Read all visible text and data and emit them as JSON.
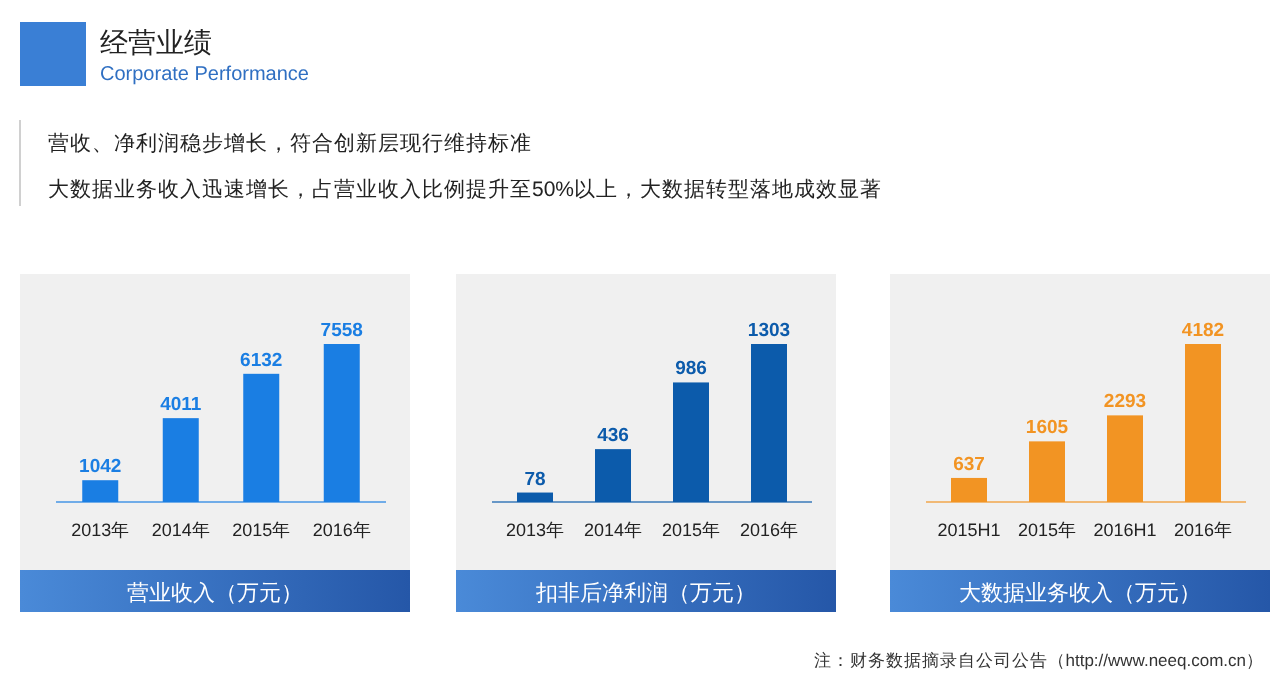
{
  "chart_data": [
    {
      "type": "bar",
      "title": "营业收入（万元）",
      "categories": [
        "2013年",
        "2014年",
        "2015年",
        "2016年"
      ],
      "values": [
        1042,
        4011,
        6132,
        7558
      ],
      "color": "#1a7ee3",
      "data_labels": true,
      "annotations": [
        "经营业绩",
        "Corporate Performance",
        "营收、净利润稳步增长，符合创新层现行维持标准",
        "大数据业务收入迅速增长，占营业收入比例提升至50%以上，大数据转型落地成效显著",
        "注：财务数据摘录自公司公告（http://www.neeq.com.cn）"
      ]
    },
    {
      "type": "bar",
      "title": "扣非后净利润（万元）",
      "categories": [
        "2013年",
        "2014年",
        "2015年",
        "2016年"
      ],
      "values": [
        78,
        436,
        986,
        1303
      ],
      "color": "#0c5bab",
      "data_labels": true
    },
    {
      "type": "bar",
      "title": "大数据业务收入（万元）",
      "categories": [
        "2015H1",
        "2015年",
        "2016H1",
        "2016年"
      ],
      "values": [
        637,
        1605,
        2293,
        4182
      ],
      "color": "#f29423",
      "data_labels": true
    }
  ]
}
